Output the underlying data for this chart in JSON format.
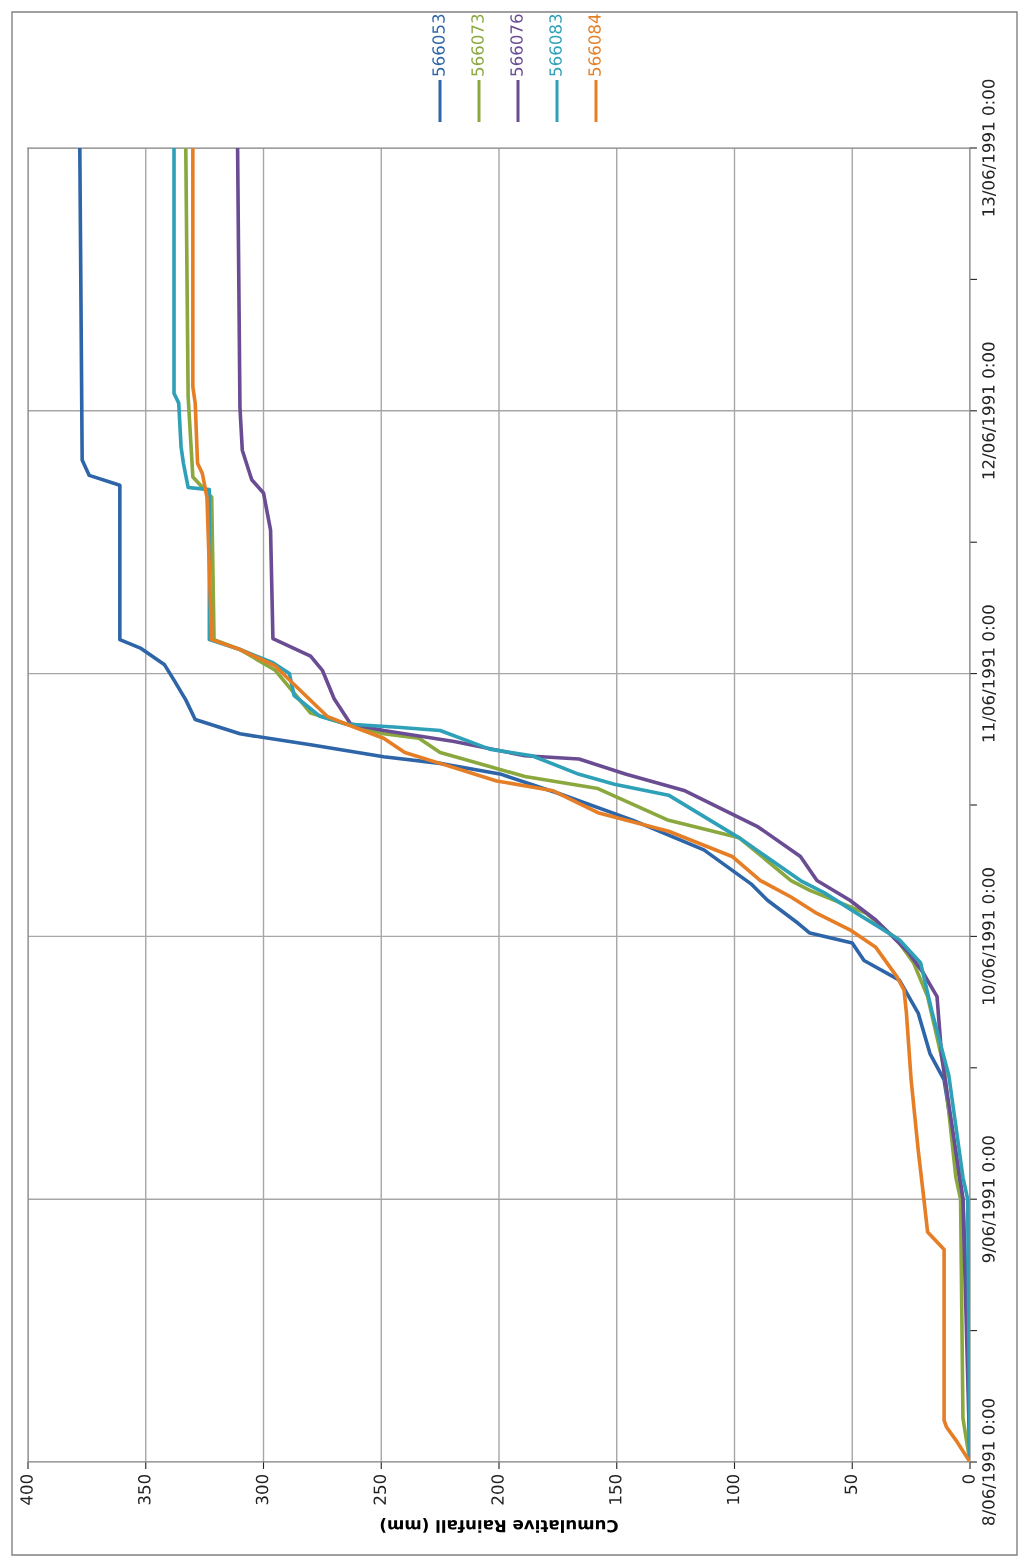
{
  "chart_data": {
    "type": "line",
    "orientation": "horizontal",
    "xlabel": "Cumulative Rainfall (mm)",
    "xlim": [
      400,
      0
    ],
    "xticks": [
      0,
      50,
      100,
      150,
      200,
      250,
      300,
      350,
      400
    ],
    "ylim": [
      "1991-06-08T00:00",
      "1991-06-13T00:00"
    ],
    "yticks": [
      {
        "value": "1991-06-08T00:00",
        "label": "8/06/1991 0:00"
      },
      {
        "value": "1991-06-08T12:00",
        "label": null
      },
      {
        "value": "1991-06-09T00:00",
        "label": "9/06/1991 0:00"
      },
      {
        "value": "1991-06-09T12:00",
        "label": null
      },
      {
        "value": "1991-06-10T00:00",
        "label": "10/06/1991 0:00"
      },
      {
        "value": "1991-06-10T12:00",
        "label": null
      },
      {
        "value": "1991-06-11T00:00",
        "label": "11/06/1991 0:00"
      },
      {
        "value": "1991-06-11T12:00",
        "label": null
      },
      {
        "value": "1991-06-12T00:00",
        "label": "12/06/1991 0:00"
      },
      {
        "value": "1991-06-12T12:00",
        "label": null
      },
      {
        "value": "1991-06-13T00:00",
        "label": "13/06/1991 0:00"
      }
    ],
    "grid": true,
    "legend": "top",
    "line_style": "solid",
    "series": [
      {
        "name": "566053",
        "color": "#2e65a8",
        "values": [
          0,
          1,
          3,
          11,
          17,
          22,
          30,
          45,
          50,
          68,
          73,
          86,
          93,
          113,
          143,
          174,
          199,
          225,
          249,
          280,
          310,
          329,
          333,
          338,
          342,
          352,
          361,
          361,
          374,
          377,
          378
        ],
        "x": [
          "1991-06-08T00:00",
          "1991-06-08T12:00",
          "1991-06-09T00:00",
          "1991-06-09T10:54",
          "1991-06-09T13:18",
          "1991-06-09T17:00",
          "1991-06-09T20:00",
          "1991-06-09T21:48",
          "1991-06-09T23:24",
          "1991-06-10T00:18",
          "1991-06-10T01:12",
          "1991-06-10T03:18",
          "1991-06-10T04:48",
          "1991-06-10T07:54",
          "1991-06-10T10:36",
          "1991-06-10T13:00",
          "1991-06-10T14:48",
          "1991-06-10T15:48",
          "1991-06-10T16:24",
          "1991-06-10T17:30",
          "1991-06-10T18:30",
          "1991-06-10T19:48",
          "1991-06-10T21:36",
          "1991-06-10T23:24",
          "1991-06-11T00:48",
          "1991-06-11T02:18",
          "1991-06-11T03:06",
          "1991-06-11T17:12",
          "1991-06-11T18:06",
          "1991-06-11T19:30",
          "1991-06-13T00:00"
        ]
      },
      {
        "name": "566073",
        "color": "#8aa83e",
        "values": [
          0,
          3,
          4,
          6,
          11,
          18,
          24,
          31,
          44,
          68,
          76,
          98,
          128,
          158,
          189,
          225,
          234,
          249,
          265,
          280,
          295,
          310,
          321,
          322,
          330,
          332,
          333
        ],
        "x": [
          "1991-06-08T00:00",
          "1991-06-08T04:00",
          "1991-06-09T00:00",
          "1991-06-09T02:00",
          "1991-06-09T12:00",
          "1991-06-09T18:30",
          "1991-06-09T21:36",
          "1991-06-09T23:42",
          "1991-06-10T02:06",
          "1991-06-10T04:12",
          "1991-06-10T05:06",
          "1991-06-10T09:00",
          "1991-06-10T10:36",
          "1991-06-10T13:30",
          "1991-06-10T14:36",
          "1991-06-10T16:48",
          "1991-06-10T18:06",
          "1991-06-10T18:30",
          "1991-06-10T19:24",
          "1991-06-10T20:24",
          "1991-06-11T00:18",
          "1991-06-11T02:12",
          "1991-06-11T03:06",
          "1991-06-11T16:06",
          "1991-06-11T17:57",
          "1991-06-12T01:18",
          "1991-06-13T00:00"
        ]
      },
      {
        "name": "566076",
        "color": "#6a4c93",
        "values": [
          0,
          3,
          12,
          14,
          20,
          26,
          40,
          51,
          65,
          72,
          90,
          121,
          146,
          166,
          189,
          219,
          249,
          263,
          270,
          275,
          280,
          296,
          297,
          300,
          305,
          309,
          310,
          311
        ],
        "x": [
          "1991-06-08T00:00",
          "1991-06-09T00:00",
          "1991-06-09T13:00",
          "1991-06-09T18:30",
          "1991-06-09T20:42",
          "1991-06-09T22:30",
          "1991-06-10T01:30",
          "1991-06-10T03:18",
          "1991-06-10T05:06",
          "1991-06-10T07:18",
          "1991-06-10T10:00",
          "1991-06-10T13:18",
          "1991-06-10T14:48",
          "1991-06-10T16:12",
          "1991-06-10T16:30",
          "1991-06-10T17:48",
          "1991-06-10T18:48",
          "1991-06-10T19:24",
          "1991-06-10T21:42",
          "1991-06-11T00:18",
          "1991-06-11T01:36",
          "1991-06-11T03:12",
          "1991-06-11T13:06",
          "1991-06-11T16:30",
          "1991-06-11T17:42",
          "1991-06-11T20:24",
          "1991-06-12T00:18",
          "1991-06-13T00:00"
        ]
      },
      {
        "name": "566083",
        "color": "#2ea0b8",
        "values": [
          0,
          1,
          3,
          9,
          16,
          21,
          30,
          48,
          62,
          72,
          98,
          128,
          151,
          166,
          186,
          204,
          225,
          243,
          265,
          276,
          287,
          289,
          296,
          310,
          323,
          323,
          332,
          334,
          335,
          336,
          338,
          338
        ],
        "x": [
          "1991-06-08T00:00",
          "1991-06-09T00:00",
          "1991-06-09T02:00",
          "1991-06-09T11:18",
          "1991-06-09T17:00",
          "1991-06-09T21:36",
          "1991-06-09T23:42",
          "1991-06-10T02:06",
          "1991-06-10T04:00",
          "1991-06-10T05:06",
          "1991-06-10T09:00",
          "1991-06-10T12:54",
          "1991-06-10T13:54",
          "1991-06-10T14:48",
          "1991-06-10T16:30",
          "1991-06-10T17:06",
          "1991-06-10T18:48",
          "1991-06-10T19:06",
          "1991-06-10T19:24",
          "1991-06-10T20:06",
          "1991-06-10T22:00",
          "1991-06-11T00:00",
          "1991-06-11T01:00",
          "1991-06-11T02:12",
          "1991-06-11T03:06",
          "1991-06-11T16:48",
          "1991-06-11T17:00",
          "1991-06-11T19:12",
          "1991-06-11T20:42",
          "1991-06-12T00:42",
          "1991-06-12T01:36",
          "1991-06-13T00:00"
        ]
      },
      {
        "name": "566084",
        "color": "#e57e25",
        "values": [
          0,
          6,
          10,
          11,
          11,
          18,
          20,
          22,
          25,
          27,
          28,
          31,
          40,
          51,
          65,
          76,
          89,
          101,
          128,
          158,
          177,
          201,
          225,
          240,
          249,
          265,
          273,
          287,
          295,
          310,
          322,
          324,
          326,
          328,
          329,
          330,
          330
        ],
        "x": [
          "1991-06-08T00:00",
          "1991-06-08T02:00",
          "1991-06-08T03:12",
          "1991-06-08T03:48",
          "1991-06-08T19:24",
          "1991-06-08T21:00",
          "1991-06-09T00:48",
          "1991-06-09T04:30",
          "1991-06-09T10:54",
          "1991-06-09T17:00",
          "1991-06-09T19:06",
          "1991-06-09T20:18",
          "1991-06-09T23:00",
          "1991-06-10T00:36",
          "1991-06-10T02:06",
          "1991-06-10T03:36",
          "1991-06-10T05:06",
          "1991-06-10T07:18",
          "1991-06-10T09:36",
          "1991-06-10T11:18",
          "1991-06-10T13:18",
          "1991-06-10T14:12",
          "1991-06-10T15:48",
          "1991-06-10T16:48",
          "1991-06-10T18:06",
          "1991-06-10T19:24",
          "1991-06-10T20:06",
          "1991-06-10T23:00",
          "1991-06-11T00:42",
          "1991-06-11T02:12",
          "1991-06-11T03:06",
          "1991-06-11T16:06",
          "1991-06-11T18:18",
          "1991-06-11T19:12",
          "1991-06-12T00:42",
          "1991-06-12T02:12",
          "1991-06-13T00:00"
        ]
      }
    ]
  }
}
